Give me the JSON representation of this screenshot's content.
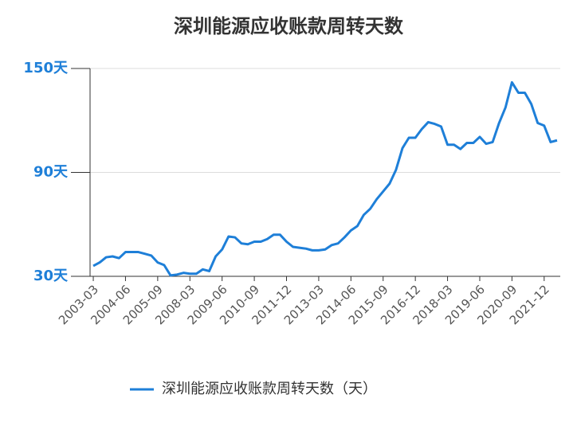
{
  "chart_data": {
    "type": "line",
    "title": "深圳能源应收账款周转天数",
    "categories": [
      "2003-03",
      null,
      null,
      null,
      null,
      "2004-06",
      null,
      null,
      null,
      null,
      "2005-09",
      null,
      null,
      null,
      null,
      "2008-03",
      null,
      null,
      null,
      null,
      "2009-06",
      null,
      null,
      null,
      null,
      "2010-09",
      null,
      null,
      null,
      null,
      "2011-12",
      null,
      null,
      null,
      null,
      "2013-03",
      null,
      null,
      null,
      null,
      "2014-06",
      null,
      null,
      null,
      null,
      "2015-09",
      null,
      null,
      null,
      null,
      "2016-12",
      null,
      null,
      null,
      null,
      "2018-03",
      null,
      null,
      null,
      null,
      "2019-06",
      null,
      null,
      null,
      null,
      "2020-09",
      null,
      null,
      null,
      null,
      "2021-12",
      null,
      null
    ],
    "series": [
      {
        "name": "深圳能源应收账款周转天数（天）",
        "color": "#1e7fd8",
        "values": [
          36,
          38,
          41,
          41.5,
          40.5,
          44,
          44,
          44,
          43,
          42,
          38,
          36.5,
          30.5,
          31,
          32,
          31.5,
          31.5,
          34,
          33,
          41.5,
          45.5,
          53,
          52.5,
          49,
          48.5,
          50,
          50,
          51.5,
          54,
          54,
          50,
          47,
          46.5,
          46,
          45,
          45,
          45.5,
          48,
          49,
          52.5,
          56.5,
          59,
          65.5,
          69,
          74.5,
          79,
          83.5,
          91.5,
          104,
          110,
          110,
          115,
          119,
          118,
          116.5,
          106,
          106,
          103.5,
          107,
          107,
          110.5,
          106.5,
          107.5,
          118.5,
          127.5,
          142,
          136,
          136,
          129.5,
          118.5,
          117,
          107.5,
          108.5
        ]
      }
    ],
    "ylim": [
      30,
      150
    ],
    "yticks": [
      {
        "value": 30,
        "label": "30天"
      },
      {
        "value": 90,
        "label": "90天"
      },
      {
        "value": 150,
        "label": "150天"
      }
    ],
    "grid": true
  }
}
